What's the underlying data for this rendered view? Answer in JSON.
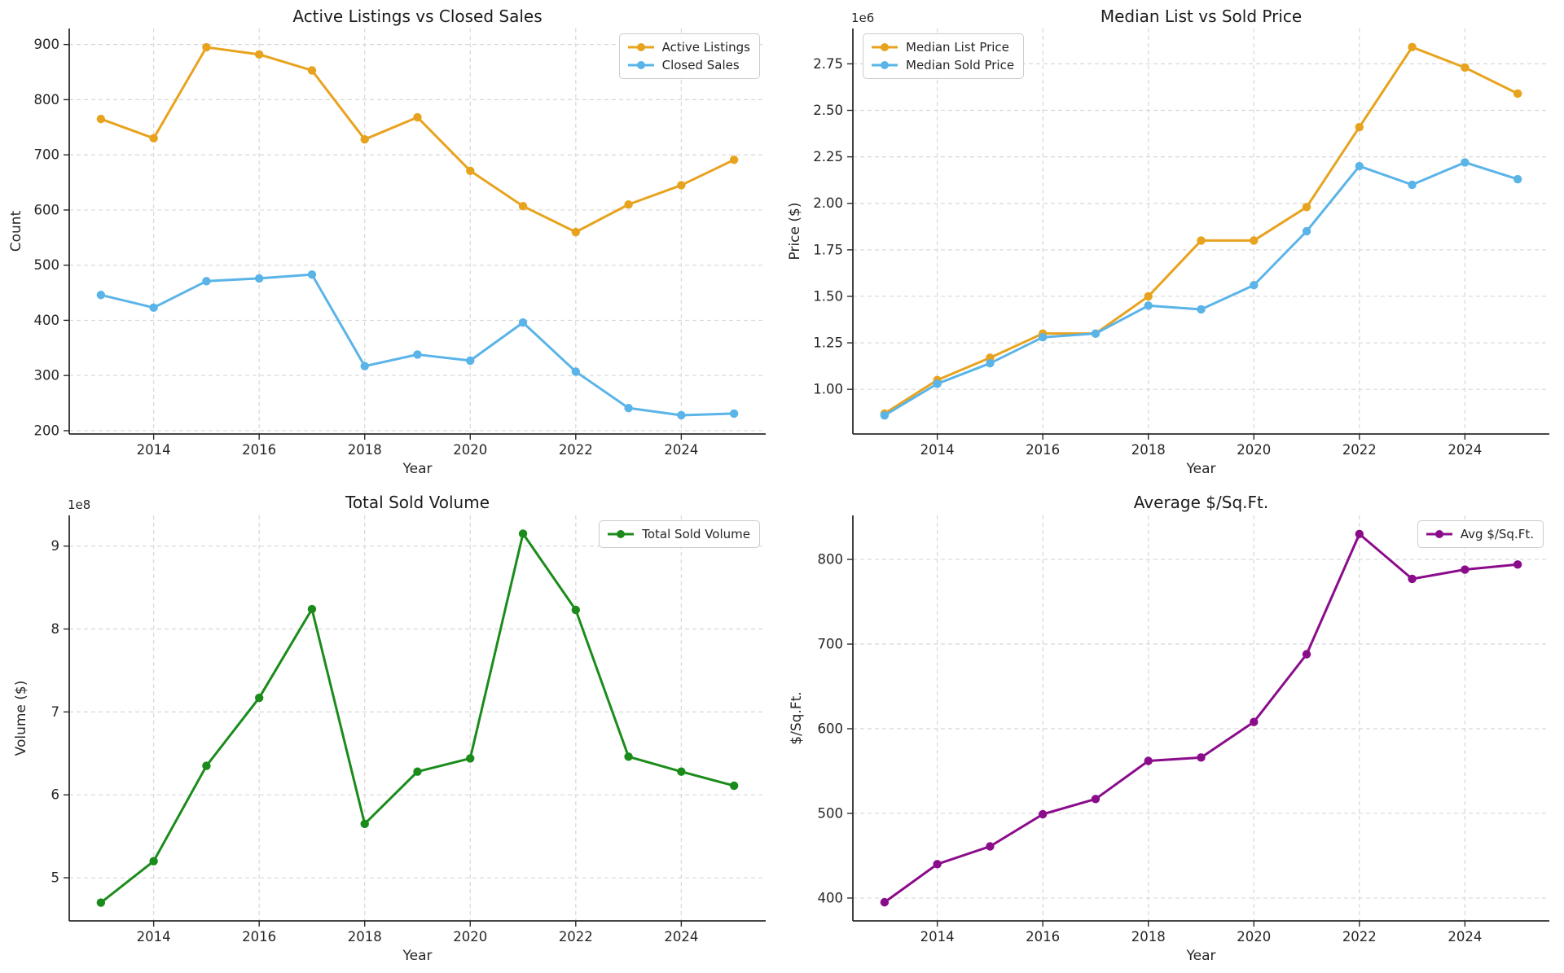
{
  "figure": {
    "xlabel": "Year",
    "background": "#ffffff",
    "text_color": "#262626",
    "grid_color": "#d8d8d8",
    "spine_color": "#2b2b2b"
  },
  "chart_data": [
    {
      "type": "line",
      "title": "Active Listings vs Closed Sales",
      "xlabel": "Year",
      "ylabel": "Count",
      "grid": true,
      "legend_loc": "upper right",
      "x": [
        2013,
        2014,
        2015,
        2016,
        2017,
        2018,
        2019,
        2020,
        2021,
        2022,
        2023,
        2024,
        2025
      ],
      "series": [
        {
          "name": "Active Listings",
          "color": "#E8A31E",
          "values": [
            765,
            730,
            895,
            882,
            853,
            728,
            768,
            671,
            607,
            560,
            610,
            645,
            691
          ]
        },
        {
          "name": "Closed Sales",
          "color": "#5AB4E8",
          "values": [
            446,
            423,
            471,
            476,
            483,
            317,
            338,
            327,
            396,
            307,
            241,
            228,
            231
          ]
        }
      ],
      "xlim": [
        2012.4,
        2025.6
      ],
      "ylim": [
        194,
        929
      ],
      "x_ticks": [
        2014,
        2016,
        2018,
        2020,
        2022,
        2024
      ],
      "x_tick_labels": [
        "2014",
        "2016",
        "2018",
        "2020",
        "2022",
        "2024"
      ],
      "y_ticks": [
        200,
        300,
        400,
        500,
        600,
        700,
        800,
        900
      ],
      "y_tick_labels": [
        "200",
        "300",
        "400",
        "500",
        "600",
        "700",
        "800",
        "900"
      ]
    },
    {
      "type": "line",
      "title": "Median List vs Sold Price",
      "xlabel": "Year",
      "ylabel": "Price ($)",
      "offset_text": "1e6",
      "grid": true,
      "legend_loc": "upper left",
      "x": [
        2013,
        2014,
        2015,
        2016,
        2017,
        2018,
        2019,
        2020,
        2021,
        2022,
        2023,
        2024,
        2025
      ],
      "series": [
        {
          "name": "Median List Price",
          "color": "#E8A31E",
          "values": [
            0.87,
            1.05,
            1.17,
            1.3,
            1.3,
            1.5,
            1.8,
            1.8,
            1.98,
            2.41,
            2.84,
            2.73,
            2.59
          ]
        },
        {
          "name": "Median Sold Price",
          "color": "#5AB4E8",
          "values": [
            0.86,
            1.03,
            1.14,
            1.28,
            1.3,
            1.45,
            1.43,
            1.56,
            1.85,
            2.2,
            2.1,
            2.22,
            2.13
          ]
        }
      ],
      "xlim": [
        2012.4,
        2025.6
      ],
      "ylim": [
        0.76,
        2.94
      ],
      "x_ticks": [
        2014,
        2016,
        2018,
        2020,
        2022,
        2024
      ],
      "x_tick_labels": [
        "2014",
        "2016",
        "2018",
        "2020",
        "2022",
        "2024"
      ],
      "y_ticks": [
        1.0,
        1.25,
        1.5,
        1.75,
        2.0,
        2.25,
        2.5,
        2.75
      ],
      "y_tick_labels": [
        "1.00",
        "1.25",
        "1.50",
        "1.75",
        "2.00",
        "2.25",
        "2.50",
        "2.75"
      ]
    },
    {
      "type": "line",
      "title": "Total Sold Volume",
      "xlabel": "Year",
      "ylabel": "Volume ($)",
      "offset_text": "1e8",
      "grid": true,
      "legend_loc": "upper right",
      "x": [
        2013,
        2014,
        2015,
        2016,
        2017,
        2018,
        2019,
        2020,
        2021,
        2022,
        2023,
        2024,
        2025
      ],
      "series": [
        {
          "name": "Total Sold Volume",
          "color": "#1B8C1B",
          "values": [
            4.7,
            5.2,
            6.35,
            7.17,
            8.24,
            5.65,
            6.28,
            6.44,
            9.15,
            8.23,
            6.46,
            6.28,
            6.11
          ]
        }
      ],
      "xlim": [
        2012.4,
        2025.6
      ],
      "ylim": [
        4.48,
        9.37
      ],
      "x_ticks": [
        2014,
        2016,
        2018,
        2020,
        2022,
        2024
      ],
      "x_tick_labels": [
        "2014",
        "2016",
        "2018",
        "2020",
        "2022",
        "2024"
      ],
      "y_ticks": [
        5,
        6,
        7,
        8,
        9
      ],
      "y_tick_labels": [
        "5",
        "6",
        "7",
        "8",
        "9"
      ]
    },
    {
      "type": "line",
      "title": "Average $/Sq.Ft.",
      "xlabel": "Year",
      "ylabel": "$/Sq.Ft.",
      "grid": true,
      "legend_loc": "upper right",
      "x": [
        2013,
        2014,
        2015,
        2016,
        2017,
        2018,
        2019,
        2020,
        2021,
        2022,
        2023,
        2024,
        2025
      ],
      "series": [
        {
          "name": "Avg $/Sq.Ft.",
          "color": "#8B0C8B",
          "values": [
            395,
            440,
            461,
            499,
            517,
            562,
            566,
            608,
            688,
            830,
            777,
            788,
            794
          ]
        }
      ],
      "xlim": [
        2012.4,
        2025.6
      ],
      "ylim": [
        373,
        852
      ],
      "x_ticks": [
        2014,
        2016,
        2018,
        2020,
        2022,
        2024
      ],
      "x_tick_labels": [
        "2014",
        "2016",
        "2018",
        "2020",
        "2022",
        "2024"
      ],
      "y_ticks": [
        400,
        500,
        600,
        700,
        800
      ],
      "y_tick_labels": [
        "400",
        "500",
        "600",
        "700",
        "800"
      ]
    }
  ]
}
